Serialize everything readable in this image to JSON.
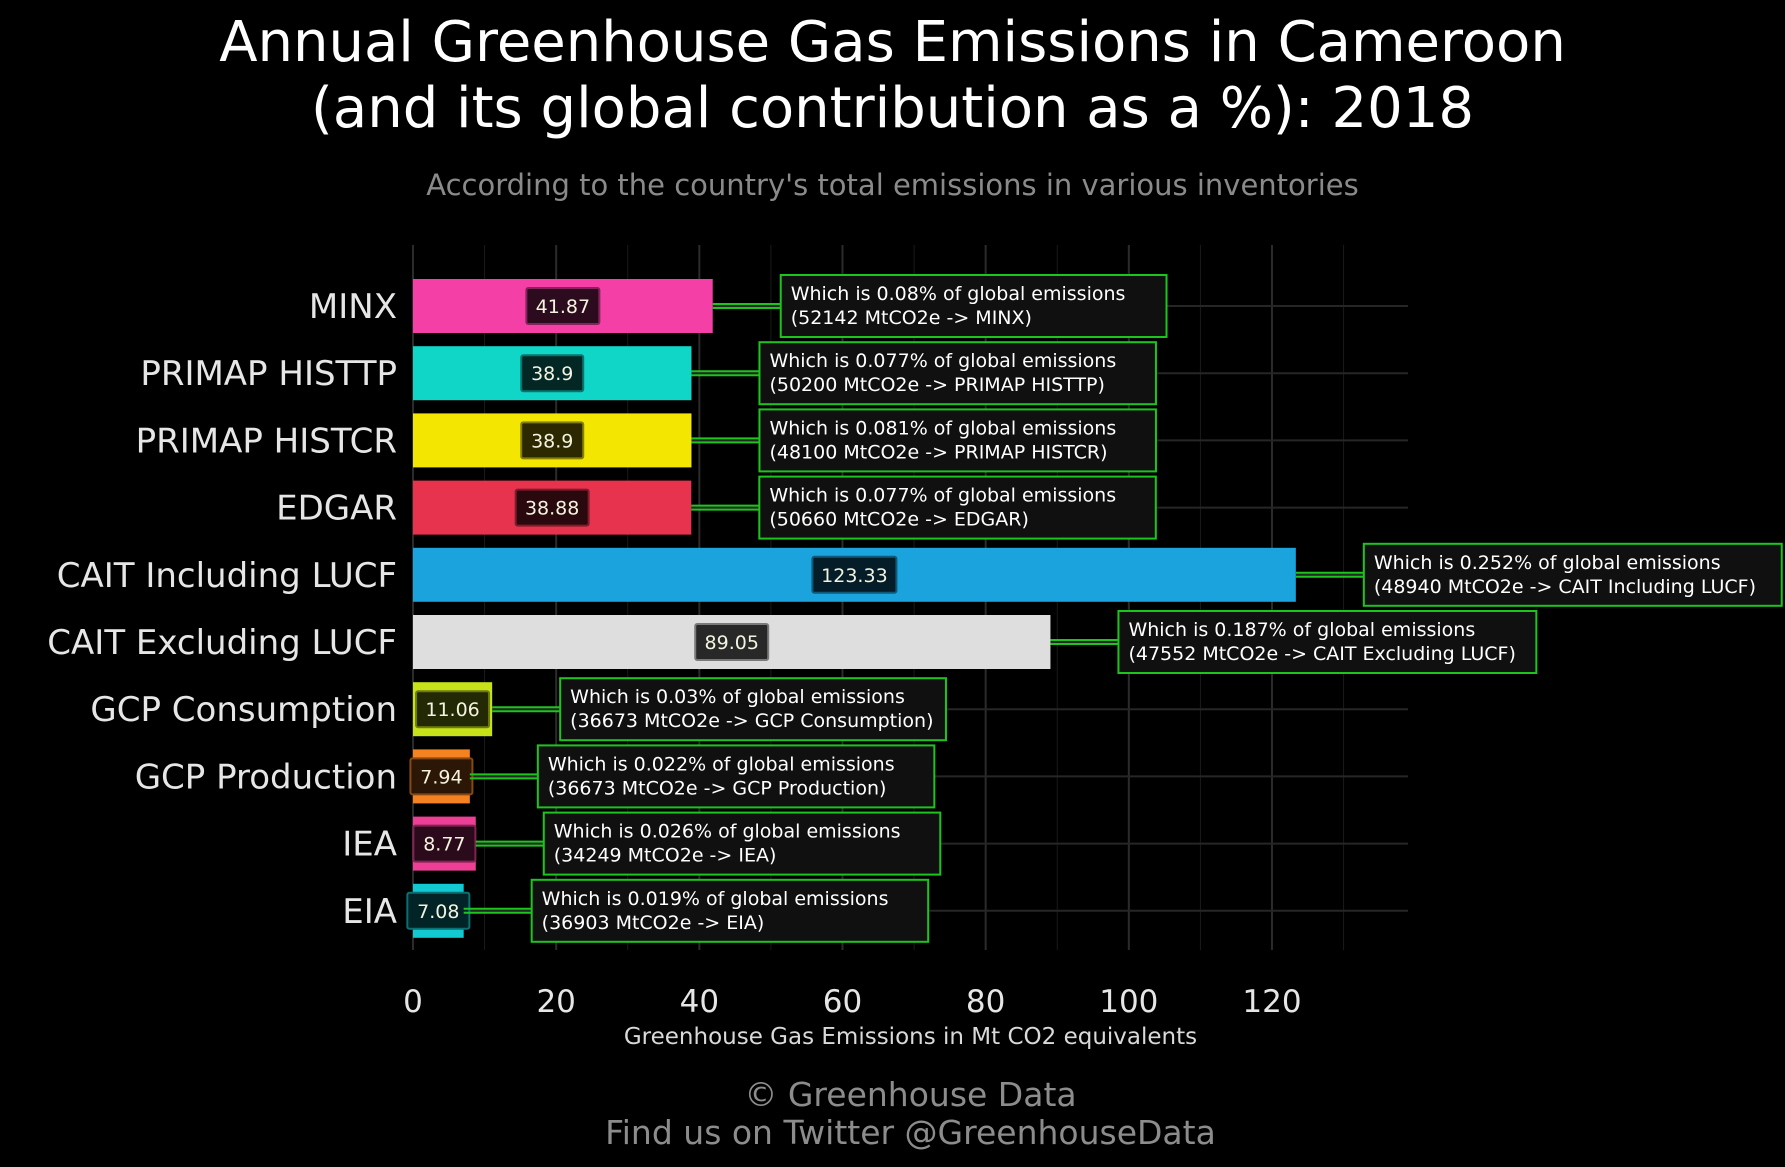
{
  "chart_data": {
    "type": "bar",
    "orientation": "horizontal",
    "title_line1": "Annual Greenhouse Gas Emissions in Cameroon",
    "title_line2": "(and its global contribution as a %): 2018",
    "subtitle": "According to the country's total emissions in various inventories",
    "xlabel": "Greenhouse Gas Emissions in Mt CO2 equivalents",
    "ylabel": "",
    "xlim": [
      0,
      139
    ],
    "xticks": [
      0,
      20,
      40,
      60,
      80,
      100,
      120
    ],
    "grid": true,
    "categories": [
      "MINX",
      "PRIMAP HISTTP",
      "PRIMAP HISTCR",
      "EDGAR",
      "CAIT Including LUCF",
      "CAIT Excluding LUCF",
      "GCP Consumption",
      "GCP Production",
      "IEA",
      "EIA"
    ],
    "values": [
      41.87,
      38.9,
      38.9,
      38.88,
      123.33,
      89.05,
      11.06,
      7.94,
      8.77,
      7.08
    ],
    "value_labels": [
      "41.87",
      "38.9",
      "38.9",
      "38.88",
      "123.33",
      "89.05",
      "11.06",
      "7.94",
      "8.77",
      "7.08"
    ],
    "colors": [
      "#f43fa7",
      "#10d6c8",
      "#f3e600",
      "#e8334e",
      "#1aa3dd",
      "#dedede",
      "#c8e21a",
      "#f58220",
      "#ee3f97",
      "#13c9d1"
    ],
    "annotations": [
      {
        "line1": "Which is 0.08% of global emissions",
        "line2": "(52142 MtCO2e -> MINX)"
      },
      {
        "line1": "Which is 0.077% of global emissions",
        "line2": "(50200 MtCO2e -> PRIMAP HISTTP)"
      },
      {
        "line1": "Which is 0.081% of global emissions",
        "line2": "(48100 MtCO2e -> PRIMAP HISTCR)"
      },
      {
        "line1": "Which is 0.077% of global emissions",
        "line2": "(50660 MtCO2e -> EDGAR)"
      },
      {
        "line1": "Which is 0.252% of global emissions",
        "line2": "(48940 MtCO2e -> CAIT Including LUCF)"
      },
      {
        "line1": "Which is 0.187% of global emissions",
        "line2": "(47552 MtCO2e -> CAIT Excluding LUCF)"
      },
      {
        "line1": "Which is 0.03% of global emissions",
        "line2": "(36673 MtCO2e -> GCP Consumption)"
      },
      {
        "line1": "Which is 0.022% of global emissions",
        "line2": "(36673 MtCO2e -> GCP Production)"
      },
      {
        "line1": "Which is 0.026% of global emissions",
        "line2": "(34249 MtCO2e -> IEA)"
      },
      {
        "line1": "Which is 0.019% of global emissions",
        "line2": "(36903 MtCO2e -> EIA)"
      }
    ],
    "annotation_border_color": "#1ec41e"
  },
  "caption_line1": "© Greenhouse Data",
  "caption_line2": "Find us on Twitter @GreenhouseData"
}
